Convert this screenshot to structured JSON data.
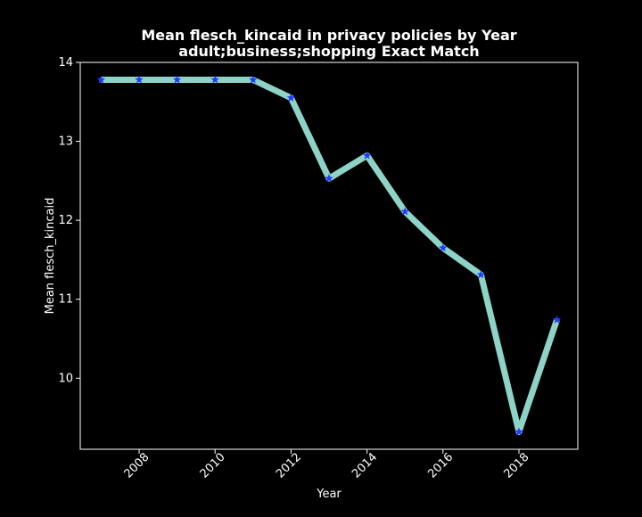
{
  "chart_data": {
    "type": "line",
    "title": "Mean flesch_kincaid in privacy policies by Year",
    "subtitle": "adult;business;shopping Exact Match",
    "xlabel": "Year",
    "ylabel": "Mean flesch_kincaid",
    "xlim": [
      2006.45,
      2019.55
    ],
    "ylim": [
      9.1,
      14.0
    ],
    "x_ticks": [
      2008,
      2010,
      2012,
      2014,
      2016,
      2018
    ],
    "y_ticks": [
      10,
      11,
      12,
      13,
      14
    ],
    "grid": false,
    "series": [
      {
        "x": [
          2007,
          2008,
          2009,
          2010,
          2011,
          2012,
          2013,
          2014,
          2015,
          2016,
          2017,
          2018,
          2019
        ],
        "y": [
          13.78,
          13.78,
          13.78,
          13.78,
          13.78,
          13.55,
          12.53,
          12.82,
          12.11,
          11.65,
          11.31,
          9.32,
          10.74
        ],
        "line_color": "#8dd3c7",
        "marker_color": "#1f3bff",
        "marker": "star"
      }
    ]
  }
}
